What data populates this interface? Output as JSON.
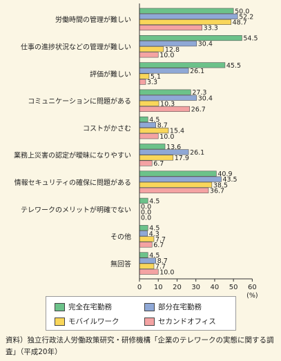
{
  "chart_data": {
    "type": "bar",
    "orientation": "horizontal",
    "categories": [
      "労働時間の管理が難しい",
      "仕事の進捗状況などの管理が難しい",
      "評価が難しい",
      "コミュニケーションに問題がある",
      "コストがかさむ",
      "業務上災害の認定が曖昧になりやすい",
      "情報セキュリティの確保に問題がある",
      "テレワークのメリットが明確でない",
      "その他",
      "無回答"
    ],
    "series": [
      {
        "name": "完全在宅勤務",
        "color": "#6cc28a",
        "values": [
          50.0,
          54.5,
          45.5,
          27.3,
          4.5,
          13.6,
          40.9,
          4.5,
          4.5,
          4.5
        ]
      },
      {
        "name": "部分在宅勤務",
        "color": "#8fa8d6",
        "values": [
          52.2,
          30.4,
          26.1,
          30.4,
          8.7,
          26.1,
          43.5,
          0.0,
          4.3,
          8.7
        ]
      },
      {
        "name": "モバイルワーク",
        "color": "#f9d65a",
        "values": [
          48.7,
          12.8,
          5.1,
          10.3,
          15.4,
          17.9,
          38.5,
          0.0,
          7.7,
          7.7
        ]
      },
      {
        "name": "セカンドオフィス",
        "color": "#f4a3a3",
        "values": [
          33.3,
          10.0,
          3.3,
          26.7,
          10.0,
          6.7,
          36.7,
          0.0,
          6.7,
          10.0
        ]
      }
    ],
    "value_labels": [
      [
        "50.0",
        "52.2",
        "48.7",
        "33.3"
      ],
      [
        "54.5",
        "30.4",
        "12.8",
        "10.0"
      ],
      [
        "45.5",
        "26.1",
        "5.1",
        "3.3"
      ],
      [
        "27.3",
        "30.4",
        "10.3",
        "26.7"
      ],
      [
        "4.5",
        "8.7",
        "15.4",
        "10.0"
      ],
      [
        "13.6",
        "26.1",
        "17.9",
        "6.7"
      ],
      [
        "40.9",
        "43.5",
        "38.5",
        "36.7"
      ],
      [
        "4.5",
        "0.0",
        "0.0",
        "0.0"
      ],
      [
        "4.5",
        "4.3",
        "7.7",
        "6.7"
      ],
      [
        "4.5",
        "8.7",
        "7.7",
        "10.0"
      ]
    ],
    "xlim": [
      0,
      60
    ],
    "xticks": [
      "0",
      "10",
      "20",
      "30",
      "40",
      "50",
      "60"
    ],
    "xunit": "(%)",
    "grid": false,
    "legend_position": "bottom"
  },
  "source_note": "資料）独立行政法人労働政策研究・研修機構「企業のテレワークの実態に関する調査」（平成20年）"
}
